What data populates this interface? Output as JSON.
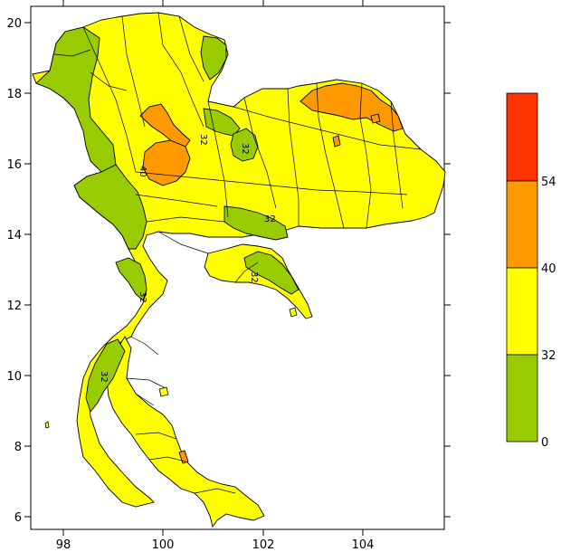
{
  "map": {
    "x_ticks": [
      "98",
      "100",
      "102",
      "104"
    ],
    "y_ticks": [
      "20",
      "18",
      "16",
      "14",
      "12",
      "10",
      "8",
      "6"
    ],
    "contour_labels": [
      "40",
      "32",
      "32",
      "32",
      "32",
      "32",
      "32"
    ]
  },
  "legend": {
    "levels": [
      {
        "label": "0",
        "color": "#99cc00"
      },
      {
        "label": "32",
        "color": "#ffff00"
      },
      {
        "label": "40",
        "color": "#ff9900"
      },
      {
        "label": "54",
        "color": "#ff3300"
      }
    ],
    "top_color": "#ff3300"
  },
  "colors": {
    "low": "#99cc00",
    "mid": "#ffff00",
    "high": "#ff9900",
    "very_high": "#ff3300"
  }
}
